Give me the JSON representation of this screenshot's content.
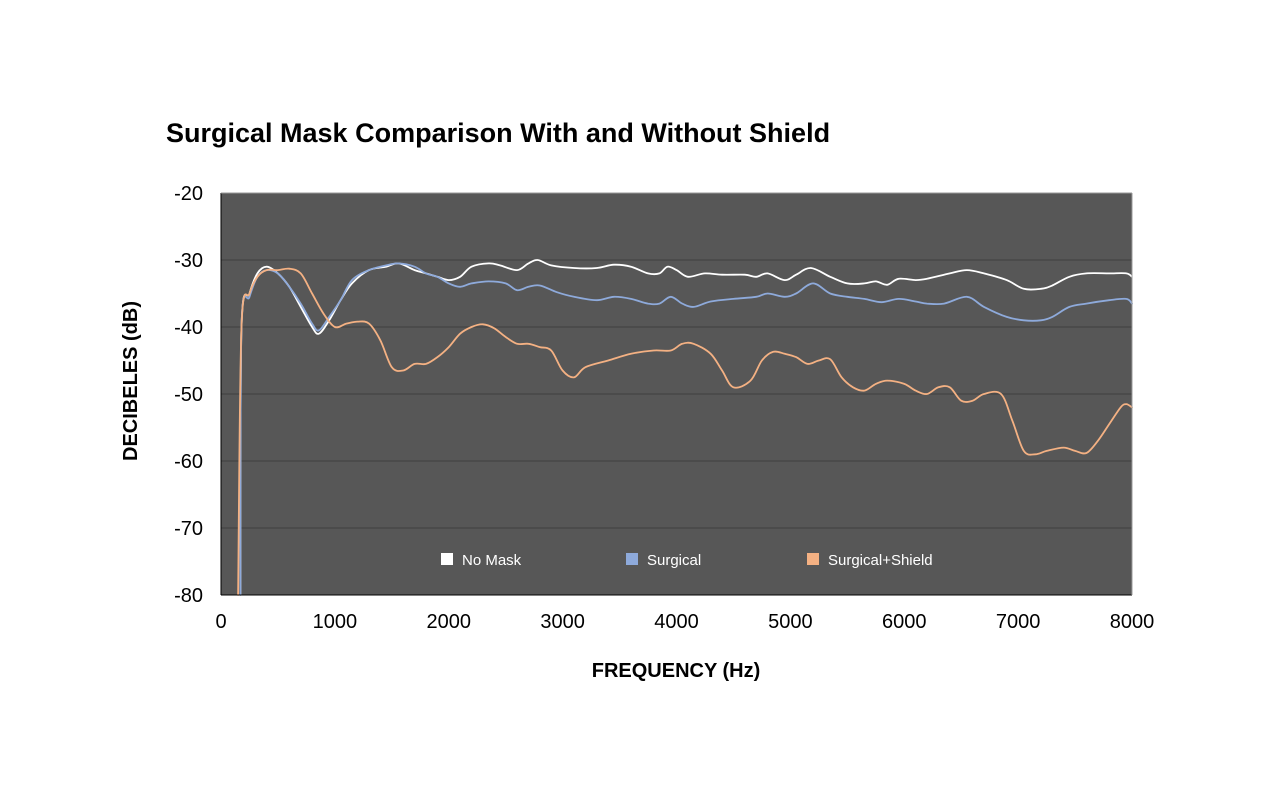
{
  "chart_data": {
    "type": "line",
    "title": "Surgical Mask Comparison With and Without Shield",
    "xlabel": "FREQUENCY (Hz)",
    "ylabel": "DECIBELES (dB)",
    "xlim": [
      0,
      8000
    ],
    "ylim": [
      -80,
      -20
    ],
    "xticks": [
      "0",
      "1000",
      "2000",
      "3000",
      "4000",
      "5000",
      "6000",
      "7000",
      "8000"
    ],
    "yticks": [
      "-20",
      "-30",
      "-40",
      "-50",
      "-60",
      "-70",
      "-80"
    ],
    "grid": "horizontal",
    "legend_position": "bottom-center, inside plot",
    "plot_background": "#575757",
    "series": [
      {
        "name": "No Mask",
        "color": "#ffffff",
        "points": [
          [
            170,
            -80
          ],
          [
            180,
            -40
          ],
          [
            250,
            -35
          ],
          [
            320,
            -32
          ],
          [
            400,
            -31
          ],
          [
            500,
            -32
          ],
          [
            600,
            -34
          ],
          [
            700,
            -37
          ],
          [
            800,
            -40
          ],
          [
            860,
            -41
          ],
          [
            950,
            -39
          ],
          [
            1050,
            -36
          ],
          [
            1150,
            -33.5
          ],
          [
            1300,
            -31.5
          ],
          [
            1450,
            -31
          ],
          [
            1560,
            -30.5
          ],
          [
            1700,
            -31.5
          ],
          [
            1800,
            -32
          ],
          [
            1900,
            -32.5
          ],
          [
            2000,
            -33
          ],
          [
            2100,
            -32.5
          ],
          [
            2200,
            -31
          ],
          [
            2350,
            -30.5
          ],
          [
            2450,
            -30.8
          ],
          [
            2600,
            -31.5
          ],
          [
            2700,
            -30.5
          ],
          [
            2780,
            -30
          ],
          [
            2900,
            -30.8
          ],
          [
            3100,
            -31.2
          ],
          [
            3300,
            -31.2
          ],
          [
            3450,
            -30.7
          ],
          [
            3600,
            -31
          ],
          [
            3750,
            -32
          ],
          [
            3850,
            -32
          ],
          [
            3920,
            -31
          ],
          [
            4000,
            -31.5
          ],
          [
            4100,
            -32.5
          ],
          [
            4250,
            -32
          ],
          [
            4400,
            -32.2
          ],
          [
            4600,
            -32.2
          ],
          [
            4700,
            -32.5
          ],
          [
            4800,
            -32
          ],
          [
            4950,
            -33
          ],
          [
            5050,
            -32.2
          ],
          [
            5180,
            -31.2
          ],
          [
            5350,
            -32.5
          ],
          [
            5500,
            -33.5
          ],
          [
            5650,
            -33.5
          ],
          [
            5750,
            -33.2
          ],
          [
            5850,
            -33.7
          ],
          [
            5950,
            -32.8
          ],
          [
            6100,
            -33
          ],
          [
            6200,
            -32.8
          ],
          [
            6400,
            -32
          ],
          [
            6550,
            -31.5
          ],
          [
            6700,
            -32
          ],
          [
            6900,
            -33
          ],
          [
            7050,
            -34.3
          ],
          [
            7200,
            -34.3
          ],
          [
            7300,
            -33.8
          ],
          [
            7450,
            -32.5
          ],
          [
            7600,
            -32
          ],
          [
            7800,
            -32
          ],
          [
            7950,
            -32
          ],
          [
            8000,
            -32.5
          ]
        ]
      },
      {
        "name": "Surgical",
        "color": "#8eaadb",
        "points": [
          [
            170,
            -80
          ],
          [
            180,
            -40
          ],
          [
            250,
            -35.5
          ],
          [
            320,
            -32.5
          ],
          [
            400,
            -31.5
          ],
          [
            500,
            -32
          ],
          [
            600,
            -34
          ],
          [
            700,
            -36.5
          ],
          [
            800,
            -39.5
          ],
          [
            860,
            -40.5
          ],
          [
            950,
            -38.5
          ],
          [
            1050,
            -36
          ],
          [
            1150,
            -33
          ],
          [
            1300,
            -31.5
          ],
          [
            1450,
            -30.8
          ],
          [
            1560,
            -30.5
          ],
          [
            1700,
            -31
          ],
          [
            1800,
            -32
          ],
          [
            1900,
            -32.5
          ],
          [
            2000,
            -33.5
          ],
          [
            2100,
            -34
          ],
          [
            2200,
            -33.5
          ],
          [
            2350,
            -33.2
          ],
          [
            2500,
            -33.5
          ],
          [
            2600,
            -34.5
          ],
          [
            2700,
            -34
          ],
          [
            2800,
            -33.8
          ],
          [
            2950,
            -34.8
          ],
          [
            3100,
            -35.5
          ],
          [
            3300,
            -36
          ],
          [
            3450,
            -35.5
          ],
          [
            3600,
            -35.8
          ],
          [
            3750,
            -36.5
          ],
          [
            3850,
            -36.5
          ],
          [
            3950,
            -35.5
          ],
          [
            4050,
            -36.5
          ],
          [
            4150,
            -37
          ],
          [
            4300,
            -36.2
          ],
          [
            4500,
            -35.8
          ],
          [
            4700,
            -35.5
          ],
          [
            4800,
            -35
          ],
          [
            4950,
            -35.5
          ],
          [
            5050,
            -35
          ],
          [
            5200,
            -33.5
          ],
          [
            5350,
            -35
          ],
          [
            5500,
            -35.5
          ],
          [
            5650,
            -35.8
          ],
          [
            5800,
            -36.3
          ],
          [
            5950,
            -35.8
          ],
          [
            6100,
            -36.2
          ],
          [
            6200,
            -36.5
          ],
          [
            6350,
            -36.5
          ],
          [
            6550,
            -35.5
          ],
          [
            6700,
            -37
          ],
          [
            6900,
            -38.5
          ],
          [
            7050,
            -39
          ],
          [
            7200,
            -39
          ],
          [
            7300,
            -38.5
          ],
          [
            7450,
            -37
          ],
          [
            7600,
            -36.5
          ],
          [
            7800,
            -36
          ],
          [
            7950,
            -35.8
          ],
          [
            8000,
            -36.5
          ]
        ]
      },
      {
        "name": "Surgical+Shield",
        "color": "#f4b183",
        "points": [
          [
            150,
            -80
          ],
          [
            180,
            -40
          ],
          [
            250,
            -35
          ],
          [
            320,
            -32.5
          ],
          [
            400,
            -31.5
          ],
          [
            500,
            -31.5
          ],
          [
            600,
            -31.3
          ],
          [
            700,
            -32
          ],
          [
            800,
            -35
          ],
          [
            900,
            -38
          ],
          [
            1000,
            -40
          ],
          [
            1100,
            -39.5
          ],
          [
            1200,
            -39.2
          ],
          [
            1300,
            -39.5
          ],
          [
            1400,
            -42
          ],
          [
            1500,
            -46
          ],
          [
            1600,
            -46.5
          ],
          [
            1700,
            -45.5
          ],
          [
            1800,
            -45.5
          ],
          [
            1900,
            -44.5
          ],
          [
            2000,
            -43
          ],
          [
            2100,
            -41
          ],
          [
            2200,
            -40
          ],
          [
            2300,
            -39.6
          ],
          [
            2400,
            -40.2
          ],
          [
            2500,
            -41.5
          ],
          [
            2600,
            -42.5
          ],
          [
            2700,
            -42.5
          ],
          [
            2800,
            -43
          ],
          [
            2900,
            -43.5
          ],
          [
            3000,
            -46.5
          ],
          [
            3100,
            -47.5
          ],
          [
            3200,
            -46
          ],
          [
            3400,
            -45
          ],
          [
            3600,
            -44
          ],
          [
            3800,
            -43.5
          ],
          [
            3950,
            -43.5
          ],
          [
            4050,
            -42.5
          ],
          [
            4150,
            -42.5
          ],
          [
            4300,
            -44
          ],
          [
            4400,
            -46.5
          ],
          [
            4500,
            -49
          ],
          [
            4650,
            -48
          ],
          [
            4750,
            -45
          ],
          [
            4850,
            -43.7
          ],
          [
            4950,
            -44
          ],
          [
            5050,
            -44.5
          ],
          [
            5150,
            -45.5
          ],
          [
            5250,
            -45
          ],
          [
            5350,
            -44.8
          ],
          [
            5450,
            -47.5
          ],
          [
            5550,
            -49
          ],
          [
            5650,
            -49.5
          ],
          [
            5750,
            -48.5
          ],
          [
            5850,
            -48
          ],
          [
            6000,
            -48.5
          ],
          [
            6100,
            -49.5
          ],
          [
            6200,
            -50
          ],
          [
            6300,
            -49
          ],
          [
            6400,
            -49
          ],
          [
            6500,
            -51
          ],
          [
            6600,
            -51
          ],
          [
            6700,
            -50
          ],
          [
            6850,
            -50
          ],
          [
            6950,
            -54
          ],
          [
            7050,
            -58.5
          ],
          [
            7150,
            -59
          ],
          [
            7250,
            -58.5
          ],
          [
            7400,
            -58
          ],
          [
            7500,
            -58.5
          ],
          [
            7600,
            -58.8
          ],
          [
            7700,
            -57
          ],
          [
            7800,
            -54.5
          ],
          [
            7900,
            -52
          ],
          [
            7950,
            -51.5
          ],
          [
            8000,
            -52
          ]
        ]
      }
    ]
  }
}
